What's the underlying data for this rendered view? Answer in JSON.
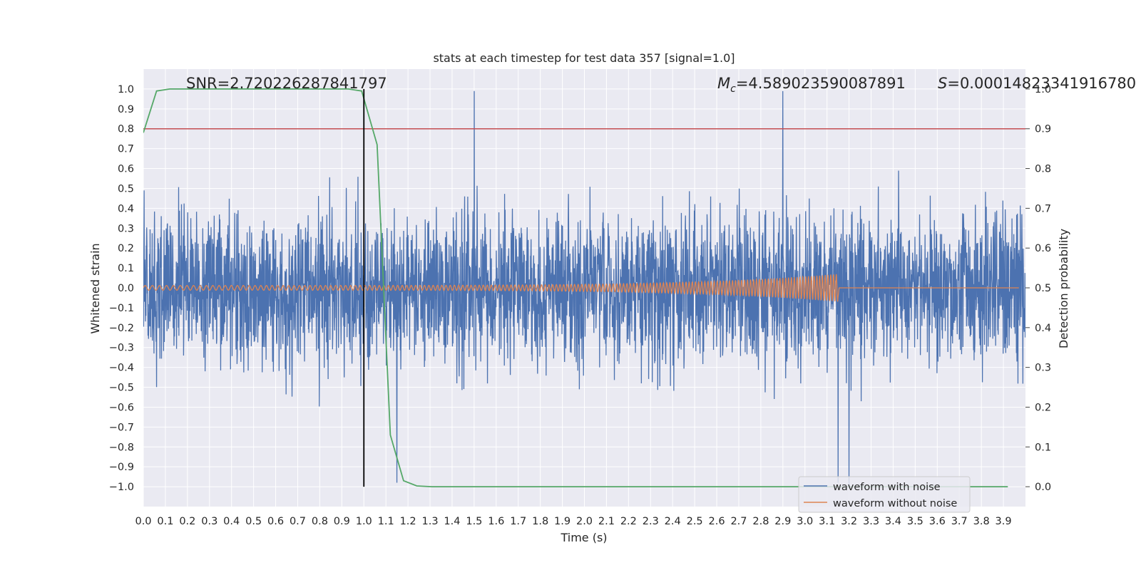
{
  "chart_data": {
    "type": "line",
    "title": "stats at each timestep for test data 357 [signal=1.0]",
    "xlabel": "Time (s)",
    "ylabel": "Whitened strain",
    "y2label": "Detection probability",
    "xlim": [
      0.0,
      4.0
    ],
    "ylim": [
      -1.1,
      1.1
    ],
    "y2lim": [
      -0.05,
      1.05
    ],
    "x_ticks": [
      "0.0",
      "0.1",
      "0.2",
      "0.3",
      "0.4",
      "0.5",
      "0.6",
      "0.7",
      "0.8",
      "0.9",
      "1.0",
      "1.1",
      "1.2",
      "1.3",
      "1.4",
      "1.5",
      "1.6",
      "1.7",
      "1.8",
      "1.9",
      "2.0",
      "2.1",
      "2.2",
      "2.3",
      "2.4",
      "2.5",
      "2.6",
      "2.7",
      "2.8",
      "2.9",
      "3.0",
      "3.1",
      "3.2",
      "3.3",
      "3.4",
      "3.5",
      "3.6",
      "3.7",
      "3.8",
      "3.9"
    ],
    "y_ticks": [
      "1.0",
      "0.9",
      "0.8",
      "0.7",
      "0.6",
      "0.5",
      "0.4",
      "0.3",
      "0.2",
      "0.1",
      "0.0",
      "−0.1",
      "−0.2",
      "−0.3",
      "−0.4",
      "−0.5",
      "−0.6",
      "−0.7",
      "−0.8",
      "−0.9",
      "−1.0"
    ],
    "y2_ticks": [
      "1.0",
      "0.9",
      "0.8",
      "0.7",
      "0.6",
      "0.5",
      "0.4",
      "0.3",
      "0.2",
      "0.1",
      "0.0"
    ],
    "annotations": {
      "snr": "SNR=2.720226287841797",
      "mc_symbol": "M",
      "mc_sub": "c",
      "mc_value": "=4.589023590087891",
      "s_symbol": "S",
      "s_value": "=0.00014823341916780"
    },
    "legend": {
      "location": "lower-right",
      "entries": [
        "waveform with noise",
        "waveform without noise"
      ]
    },
    "colors": {
      "noise": "#4c72b0",
      "clean": "#dd8452",
      "probability": "#55a868",
      "threshold": "#c44e52",
      "marker": "#000000",
      "background": "#eaeaf2",
      "grid": "#ffffff"
    },
    "series": [
      {
        "name": "waveform with noise",
        "axis": "left",
        "description_of_values": "noisy whitened strain, amplitude mostly within ±0.6 with spikes up to ±1.0",
        "noise_std": 0.26,
        "peak_spikes": [
          {
            "x": 1.5,
            "y": 0.99
          },
          {
            "x": 2.9,
            "y": 0.99
          },
          {
            "x": 3.15,
            "y": -0.98
          },
          {
            "x": 3.2,
            "y": -1.0
          },
          {
            "x": 1.15,
            "y": -0.98
          }
        ]
      },
      {
        "name": "waveform without noise",
        "axis": "left",
        "description_of_values": "chirp signal, amplitude grows from ~0.01 at t=0 to ~0.07 at t=3.15 then stops",
        "start_amplitude": 0.012,
        "end_amplitude": 0.07,
        "end_time": 3.15
      },
      {
        "name": "detection probability",
        "axis": "right",
        "x": [
          0.0,
          0.06,
          0.12,
          0.18,
          0.25,
          0.31,
          0.37,
          0.43,
          0.5,
          0.56,
          0.62,
          0.68,
          0.75,
          0.81,
          0.87,
          0.93,
          0.99,
          1.06,
          1.12,
          1.18,
          1.24,
          1.31,
          1.37,
          1.43,
          1.5,
          1.56,
          1.62,
          1.68,
          1.75,
          1.81,
          1.87,
          1.93,
          1.99,
          2.05,
          2.12,
          2.18,
          2.24,
          2.3,
          2.36,
          2.43,
          2.49,
          2.55,
          2.61,
          2.68,
          2.74,
          2.8,
          2.86,
          2.92,
          2.99,
          3.05,
          3.11,
          3.17,
          3.24,
          3.3,
          3.36,
          3.42,
          3.49,
          3.55,
          3.61,
          3.67,
          3.73,
          3.8,
          3.86,
          3.92
        ],
        "y": [
          0.89,
          0.995,
          1.0,
          1.0,
          1.0,
          1.0,
          1.0,
          1.0,
          1.0,
          1.0,
          1.0,
          1.0,
          1.0,
          1.0,
          1.0,
          1.0,
          0.995,
          0.86,
          0.13,
          0.015,
          0.002,
          0.0,
          0.0,
          0.0,
          0.0,
          0.0,
          0.0,
          0.0,
          0.0,
          0.0,
          0.0,
          0.0,
          0.0,
          0.0,
          0.0,
          0.0,
          0.0,
          0.0,
          0.0,
          0.0,
          0.0,
          0.0,
          0.0,
          0.0,
          0.0,
          0.0,
          0.0,
          0.0,
          0.0,
          0.0,
          0.0,
          0.0,
          0.0,
          0.0,
          0.0,
          0.0,
          0.0,
          0.0,
          0.0,
          0.0,
          0.0,
          0.0,
          0.0,
          0.0
        ]
      }
    ],
    "threshold_line": {
      "axis": "right",
      "y": 0.9
    },
    "marker_line": {
      "x": 1.0,
      "y_range_right_axis": [
        0.0,
        1.0
      ]
    }
  }
}
